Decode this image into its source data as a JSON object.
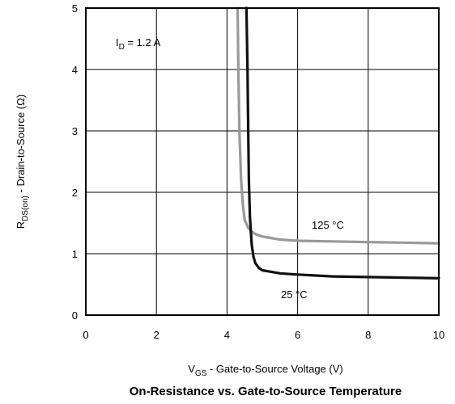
{
  "chart_data": {
    "type": "line",
    "title": "On-Resistance vs. Gate-to-Source Temperature",
    "xlabel": {
      "prefix": "V",
      "sub": "GS",
      "rest": " - Gate-to-Source Voltage (V)"
    },
    "ylabel": {
      "prefix": "R",
      "sub": "DS(on)",
      "rest": " - Drain-to-Source (Ω)"
    },
    "xlim": [
      0,
      10
    ],
    "ylim": [
      0,
      5
    ],
    "x_ticks": [
      "0",
      "2",
      "4",
      "6",
      "8",
      "10"
    ],
    "y_ticks": [
      "0",
      "1",
      "2",
      "3",
      "4",
      "5"
    ],
    "grid": true,
    "condition": {
      "prefix": "I",
      "sub": "D",
      "rest": " = 1.2  A"
    },
    "series": [
      {
        "name": "125 °C",
        "color": "#999999",
        "x": [
          4.3,
          4.32,
          4.35,
          4.4,
          4.45,
          4.5,
          4.6,
          4.7,
          4.8,
          5.0,
          5.5,
          6.0,
          7.0,
          8.0,
          9.0,
          10.0
        ],
        "y": [
          5.0,
          4.0,
          3.0,
          2.2,
          1.8,
          1.55,
          1.42,
          1.36,
          1.32,
          1.28,
          1.23,
          1.21,
          1.2,
          1.19,
          1.18,
          1.17
        ]
      },
      {
        "name": "25 °C",
        "color": "#111111",
        "x": [
          4.55,
          4.58,
          4.6,
          4.62,
          4.65,
          4.7,
          4.75,
          4.8,
          4.9,
          5.0,
          5.5,
          6.0,
          7.0,
          8.0,
          9.0,
          10.0
        ],
        "y": [
          5.0,
          4.0,
          3.0,
          2.2,
          1.6,
          1.15,
          0.95,
          0.85,
          0.77,
          0.73,
          0.68,
          0.66,
          0.63,
          0.62,
          0.61,
          0.6
        ]
      }
    ]
  }
}
